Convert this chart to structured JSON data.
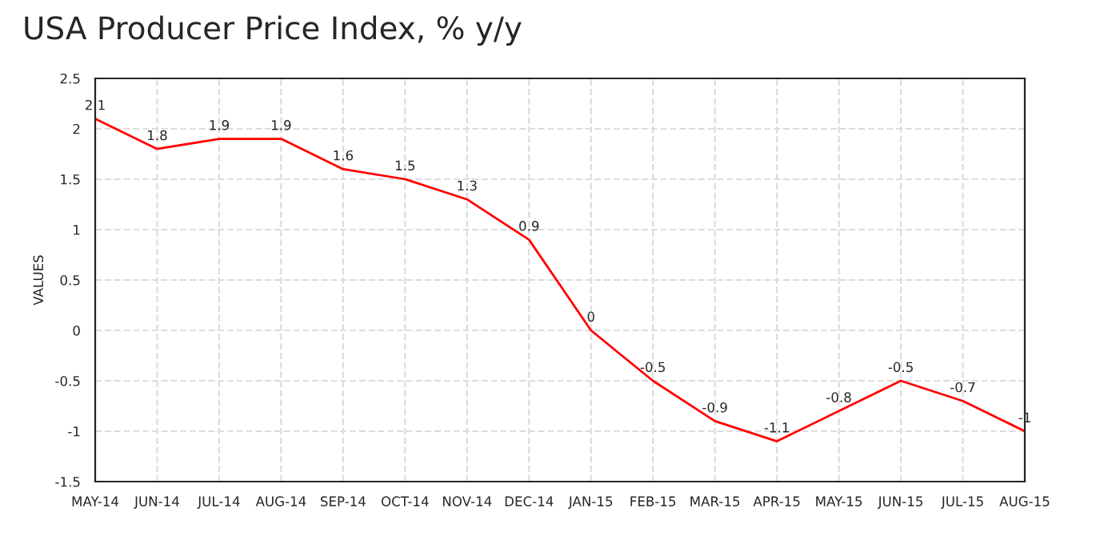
{
  "chart_data": {
    "type": "line",
    "title": "USA Producer Price Index, % y/y",
    "ylabel": "VALUES",
    "categories": [
      "MAY-14",
      "JUN-14",
      "JUL-14",
      "AUG-14",
      "SEP-14",
      "OCT-14",
      "NOV-14",
      "DEC-14",
      "JAN-15",
      "FEB-15",
      "MAR-15",
      "APR-15",
      "MAY-15",
      "JUN-15",
      "JUL-15",
      "AUG-15"
    ],
    "series": [
      {
        "color": "#ff0000",
        "values": [
          2.1,
          1.8,
          1.9,
          1.9,
          1.6,
          1.5,
          1.3,
          0.9,
          0,
          -0.5,
          -0.9,
          -1.1,
          -0.8,
          -0.5,
          -0.7,
          -1
        ]
      }
    ],
    "ylim": [
      -1.5,
      2.5
    ],
    "yticks": [
      -1.5,
      -1,
      -0.5,
      0,
      0.5,
      1,
      1.5,
      2,
      2.5
    ],
    "grid": true,
    "data_labels": true,
    "marker": "none",
    "line_style": "solid"
  }
}
